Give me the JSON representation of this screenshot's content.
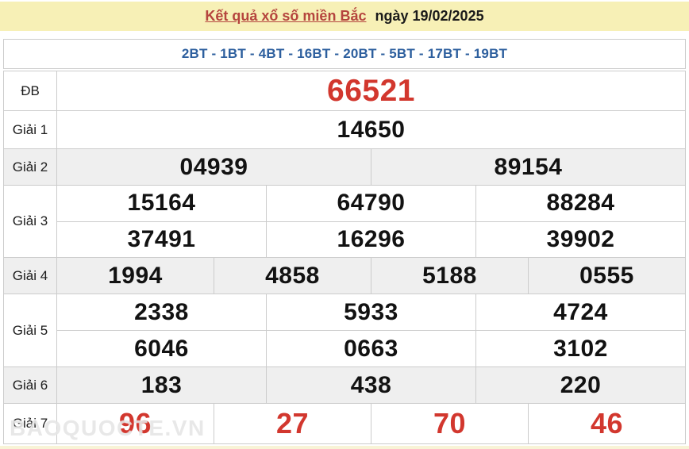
{
  "header": {
    "title_link": "Kết quả xổ số miền Bắc",
    "title_date": "ngày 19/02/2025"
  },
  "bt_row": {
    "text": "2BT - 1BT - 4BT - 16BT - 20BT - 5BT - 17BT - 19BT"
  },
  "table": {
    "rows": [
      {
        "label": "ĐB",
        "style": "special",
        "shade": false,
        "lines": [
          [
            "66521"
          ]
        ]
      },
      {
        "label": "Giải 1",
        "style": "normal",
        "shade": false,
        "lines": [
          [
            "14650"
          ]
        ]
      },
      {
        "label": "Giải 2",
        "style": "normal",
        "shade": true,
        "lines": [
          [
            "04939",
            "89154"
          ]
        ]
      },
      {
        "label": "Giải 3",
        "style": "normal",
        "shade": false,
        "lines": [
          [
            "15164",
            "64790",
            "88284"
          ],
          [
            "37491",
            "16296",
            "39902"
          ]
        ]
      },
      {
        "label": "Giải 4",
        "style": "normal",
        "shade": true,
        "lines": [
          [
            "1994",
            "4858",
            "5188",
            "0555"
          ]
        ]
      },
      {
        "label": "Giải 5",
        "style": "normal",
        "shade": false,
        "lines": [
          [
            "2338",
            "5933",
            "4724"
          ],
          [
            "6046",
            "0663",
            "3102"
          ]
        ]
      },
      {
        "label": "Giải 6",
        "style": "normal",
        "shade": true,
        "lines": [
          [
            "183",
            "438",
            "220"
          ]
        ]
      },
      {
        "label": "Giải 7",
        "style": "red",
        "shade": false,
        "lines": [
          [
            "96",
            "27",
            "70",
            "46"
          ]
        ]
      }
    ]
  },
  "watermark": {
    "text": "BAOQUOCTE.VN"
  },
  "colors": {
    "header-bg": "#f7f0b6",
    "title-red": "#b5453e",
    "number-red": "#d2372e",
    "bt-blue": "#2d5f9e",
    "shade-gray": "#efefef",
    "border-gray": "#cccccc",
    "strip-bg": "#f8f3d6",
    "strip-dash": "#cdb463"
  }
}
